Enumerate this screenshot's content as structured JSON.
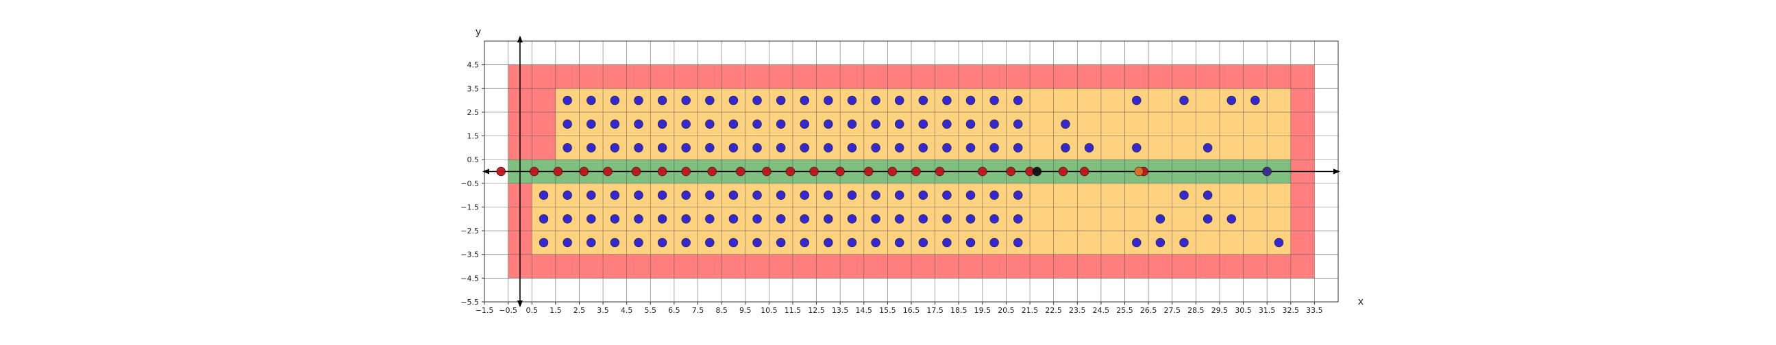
{
  "chart_data": {
    "type": "scatter",
    "title": "",
    "xlabel": "x",
    "ylabel": "y",
    "xlim": [
      -1.5,
      34.5
    ],
    "ylim": [
      -5.5,
      5.5
    ],
    "grid": true,
    "x_ticks": [
      "-1.5",
      "-0.5",
      "0.5",
      "1.5",
      "2.5",
      "3.5",
      "4.5",
      "5.5",
      "6.5",
      "7.5",
      "8.5",
      "9.5",
      "10.5",
      "11.5",
      "12.5",
      "13.5",
      "14.5",
      "15.5",
      "16.5",
      "17.5",
      "18.5",
      "19.5",
      "20.5",
      "21.5",
      "22.5",
      "23.5",
      "24.5",
      "25.5",
      "26.5",
      "27.5",
      "28.5",
      "29.5",
      "30.5",
      "31.5",
      "32.5",
      "33.5"
    ],
    "y_ticks": [
      "4.5",
      "3.5",
      "2.5",
      "1.5",
      "0.5",
      "-0.5",
      "-1.5",
      "-2.5",
      "-3.5",
      "-4.5",
      "-5.5"
    ],
    "regions": [
      {
        "color": "#ff7f7f",
        "x": [
          -0.5,
          33.5
        ],
        "y": [
          -4.5,
          4.5
        ]
      },
      {
        "color": "#ffd27f",
        "x": [
          1.5,
          32.5
        ],
        "y": [
          0.5,
          3.5
        ]
      },
      {
        "color": "#ffd27f",
        "x": [
          0.5,
          32.5
        ],
        "y": [
          -3.5,
          -0.5
        ]
      },
      {
        "color": "#7fbf7f",
        "x": [
          -0.5,
          32.5
        ],
        "y": [
          -0.5,
          0.5
        ]
      }
    ],
    "series": [
      {
        "color": "#2b1fd6",
        "points": [
          [
            2,
            3
          ],
          [
            3,
            3
          ],
          [
            4,
            3
          ],
          [
            5,
            3
          ],
          [
            6,
            3
          ],
          [
            7,
            3
          ],
          [
            8,
            3
          ],
          [
            9,
            3
          ],
          [
            10,
            3
          ],
          [
            11,
            3
          ],
          [
            12,
            3
          ],
          [
            13,
            3
          ],
          [
            14,
            3
          ],
          [
            15,
            3
          ],
          [
            16,
            3
          ],
          [
            17,
            3
          ],
          [
            18,
            3
          ],
          [
            19,
            3
          ],
          [
            20,
            3
          ],
          [
            21,
            3
          ],
          [
            26,
            3
          ],
          [
            28,
            3
          ],
          [
            30,
            3
          ],
          [
            31,
            3
          ],
          [
            2,
            2
          ],
          [
            3,
            2
          ],
          [
            4,
            2
          ],
          [
            5,
            2
          ],
          [
            6,
            2
          ],
          [
            7,
            2
          ],
          [
            8,
            2
          ],
          [
            9,
            2
          ],
          [
            10,
            2
          ],
          [
            11,
            2
          ],
          [
            12,
            2
          ],
          [
            13,
            2
          ],
          [
            14,
            2
          ],
          [
            15,
            2
          ],
          [
            16,
            2
          ],
          [
            17,
            2
          ],
          [
            18,
            2
          ],
          [
            19,
            2
          ],
          [
            20,
            2
          ],
          [
            21,
            2
          ],
          [
            23,
            2
          ],
          [
            2,
            1
          ],
          [
            3,
            1
          ],
          [
            4,
            1
          ],
          [
            5,
            1
          ],
          [
            6,
            1
          ],
          [
            7,
            1
          ],
          [
            8,
            1
          ],
          [
            9,
            1
          ],
          [
            10,
            1
          ],
          [
            11,
            1
          ],
          [
            12,
            1
          ],
          [
            13,
            1
          ],
          [
            14,
            1
          ],
          [
            15,
            1
          ],
          [
            16,
            1
          ],
          [
            17,
            1
          ],
          [
            18,
            1
          ],
          [
            19,
            1
          ],
          [
            20,
            1
          ],
          [
            21,
            1
          ],
          [
            23,
            1
          ],
          [
            24,
            1
          ],
          [
            26,
            1
          ],
          [
            29,
            1
          ],
          [
            1,
            -1
          ],
          [
            2,
            -1
          ],
          [
            3,
            -1
          ],
          [
            4,
            -1
          ],
          [
            5,
            -1
          ],
          [
            6,
            -1
          ],
          [
            7,
            -1
          ],
          [
            8,
            -1
          ],
          [
            9,
            -1
          ],
          [
            10,
            -1
          ],
          [
            11,
            -1
          ],
          [
            12,
            -1
          ],
          [
            13,
            -1
          ],
          [
            14,
            -1
          ],
          [
            15,
            -1
          ],
          [
            16,
            -1
          ],
          [
            17,
            -1
          ],
          [
            18,
            -1
          ],
          [
            19,
            -1
          ],
          [
            20,
            -1
          ],
          [
            21,
            -1
          ],
          [
            28,
            -1
          ],
          [
            29,
            -1
          ],
          [
            1,
            -2
          ],
          [
            2,
            -2
          ],
          [
            3,
            -2
          ],
          [
            4,
            -2
          ],
          [
            5,
            -2
          ],
          [
            6,
            -2
          ],
          [
            7,
            -2
          ],
          [
            8,
            -2
          ],
          [
            9,
            -2
          ],
          [
            10,
            -2
          ],
          [
            11,
            -2
          ],
          [
            12,
            -2
          ],
          [
            13,
            -2
          ],
          [
            14,
            -2
          ],
          [
            15,
            -2
          ],
          [
            16,
            -2
          ],
          [
            17,
            -2
          ],
          [
            18,
            -2
          ],
          [
            19,
            -2
          ],
          [
            20,
            -2
          ],
          [
            21,
            -2
          ],
          [
            27,
            -2
          ],
          [
            29,
            -2
          ],
          [
            30,
            -2
          ],
          [
            1,
            -3
          ],
          [
            2,
            -3
          ],
          [
            3,
            -3
          ],
          [
            4,
            -3
          ],
          [
            5,
            -3
          ],
          [
            6,
            -3
          ],
          [
            7,
            -3
          ],
          [
            8,
            -3
          ],
          [
            9,
            -3
          ],
          [
            10,
            -3
          ],
          [
            11,
            -3
          ],
          [
            12,
            -3
          ],
          [
            13,
            -3
          ],
          [
            14,
            -3
          ],
          [
            15,
            -3
          ],
          [
            16,
            -3
          ],
          [
            17,
            -3
          ],
          [
            18,
            -3
          ],
          [
            19,
            -3
          ],
          [
            20,
            -3
          ],
          [
            21,
            -3
          ],
          [
            26,
            -3
          ],
          [
            27,
            -3
          ],
          [
            28,
            -3
          ],
          [
            32,
            -3
          ]
        ]
      },
      {
        "color": "#c0141c",
        "points": [
          [
            -0.8,
            0
          ],
          [
            0.6,
            0
          ],
          [
            1.6,
            0
          ],
          [
            2.7,
            0
          ],
          [
            3.7,
            0
          ],
          [
            4.9,
            0
          ],
          [
            6.0,
            0
          ],
          [
            7.0,
            0
          ],
          [
            8.1,
            0
          ],
          [
            9.3,
            0
          ],
          [
            10.4,
            0
          ],
          [
            11.4,
            0
          ],
          [
            12.4,
            0
          ],
          [
            13.5,
            0
          ],
          [
            14.7,
            0
          ],
          [
            15.7,
            0
          ],
          [
            16.7,
            0
          ],
          [
            17.7,
            0
          ],
          [
            19.5,
            0
          ],
          [
            20.7,
            0
          ],
          [
            21.5,
            0
          ],
          [
            22.9,
            0
          ],
          [
            23.8,
            0
          ],
          [
            26.3,
            0
          ]
        ]
      },
      {
        "color": "#111111",
        "points": [
          [
            21.8,
            0
          ]
        ]
      },
      {
        "color": "#e07020",
        "points": [
          [
            26.1,
            0
          ]
        ]
      },
      {
        "color": "#3a2a8a",
        "points": [
          [
            31.5,
            0
          ]
        ]
      }
    ]
  }
}
